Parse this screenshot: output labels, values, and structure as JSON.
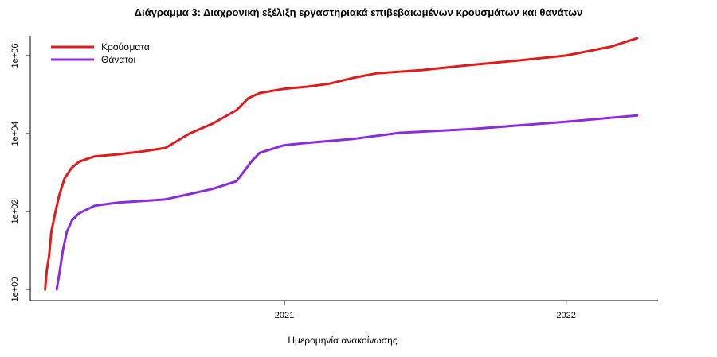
{
  "chart_data": {
    "type": "line",
    "title": "Διάγραμμα 3: Διαχρονική εξέλιξη εργαστηριακά επιβεβαιωμένων κρουσμάτων και θανάτων",
    "xlabel": "Ημερομηνία ανακοίνωσης",
    "ylabel": "",
    "y_scale": "log",
    "ylim": [
      1,
      3000000
    ],
    "xlim": [
      "2020-02-14",
      "2022-04-30"
    ],
    "x_ticks": [
      {
        "date": "2021-01-01",
        "label": "2021"
      },
      {
        "date": "2022-01-01",
        "label": "2022"
      }
    ],
    "y_ticks": [
      {
        "value": 1,
        "label": "1e+00"
      },
      {
        "value": 100,
        "label": "1e+02"
      },
      {
        "value": 10000,
        "label": "1e+04"
      },
      {
        "value": 1000000,
        "label": "1e+06"
      }
    ],
    "grid": false,
    "legend": "top-left",
    "series": [
      {
        "name": "Κρούσματα",
        "color": "#e01b1b",
        "points": [
          [
            "2020-02-26",
            1
          ],
          [
            "2020-02-28",
            3
          ],
          [
            "2020-03-02",
            7
          ],
          [
            "2020-03-05",
            30
          ],
          [
            "2020-03-10",
            90
          ],
          [
            "2020-03-15",
            250
          ],
          [
            "2020-03-22",
            700
          ],
          [
            "2020-03-31",
            1300
          ],
          [
            "2020-04-10",
            1900
          ],
          [
            "2020-04-30",
            2600
          ],
          [
            "2020-05-31",
            2950
          ],
          [
            "2020-06-30",
            3450
          ],
          [
            "2020-07-31",
            4300
          ],
          [
            "2020-08-31",
            10000
          ],
          [
            "2020-09-30",
            18000
          ],
          [
            "2020-10-31",
            40000
          ],
          [
            "2020-11-15",
            80000
          ],
          [
            "2020-11-30",
            110000
          ],
          [
            "2020-12-31",
            140000
          ],
          [
            "2021-01-31",
            160000
          ],
          [
            "2021-02-28",
            190000
          ],
          [
            "2021-03-31",
            270000
          ],
          [
            "2021-04-30",
            350000
          ],
          [
            "2021-06-30",
            430000
          ],
          [
            "2021-08-31",
            580000
          ],
          [
            "2021-10-31",
            750000
          ],
          [
            "2021-12-31",
            1000000
          ],
          [
            "2022-02-28",
            1700000
          ],
          [
            "2022-04-03",
            2800000
          ]
        ]
      },
      {
        "name": "Θάνατοι",
        "color": "#8a2be2",
        "points": [
          [
            "2020-03-12",
            1
          ],
          [
            "2020-03-16",
            3
          ],
          [
            "2020-03-20",
            10
          ],
          [
            "2020-03-25",
            30
          ],
          [
            "2020-04-01",
            60
          ],
          [
            "2020-04-10",
            90
          ],
          [
            "2020-04-30",
            140
          ],
          [
            "2020-05-31",
            170
          ],
          [
            "2020-06-30",
            185
          ],
          [
            "2020-07-31",
            205
          ],
          [
            "2020-08-31",
            280
          ],
          [
            "2020-09-30",
            380
          ],
          [
            "2020-10-31",
            600
          ],
          [
            "2020-11-10",
            1100
          ],
          [
            "2020-11-20",
            2000
          ],
          [
            "2020-11-30",
            3200
          ],
          [
            "2020-12-31",
            5000
          ],
          [
            "2021-01-31",
            5800
          ],
          [
            "2021-03-31",
            7300
          ],
          [
            "2021-05-31",
            10500
          ],
          [
            "2021-08-31",
            13000
          ],
          [
            "2021-12-31",
            20000
          ],
          [
            "2022-04-03",
            29000
          ]
        ]
      }
    ]
  }
}
